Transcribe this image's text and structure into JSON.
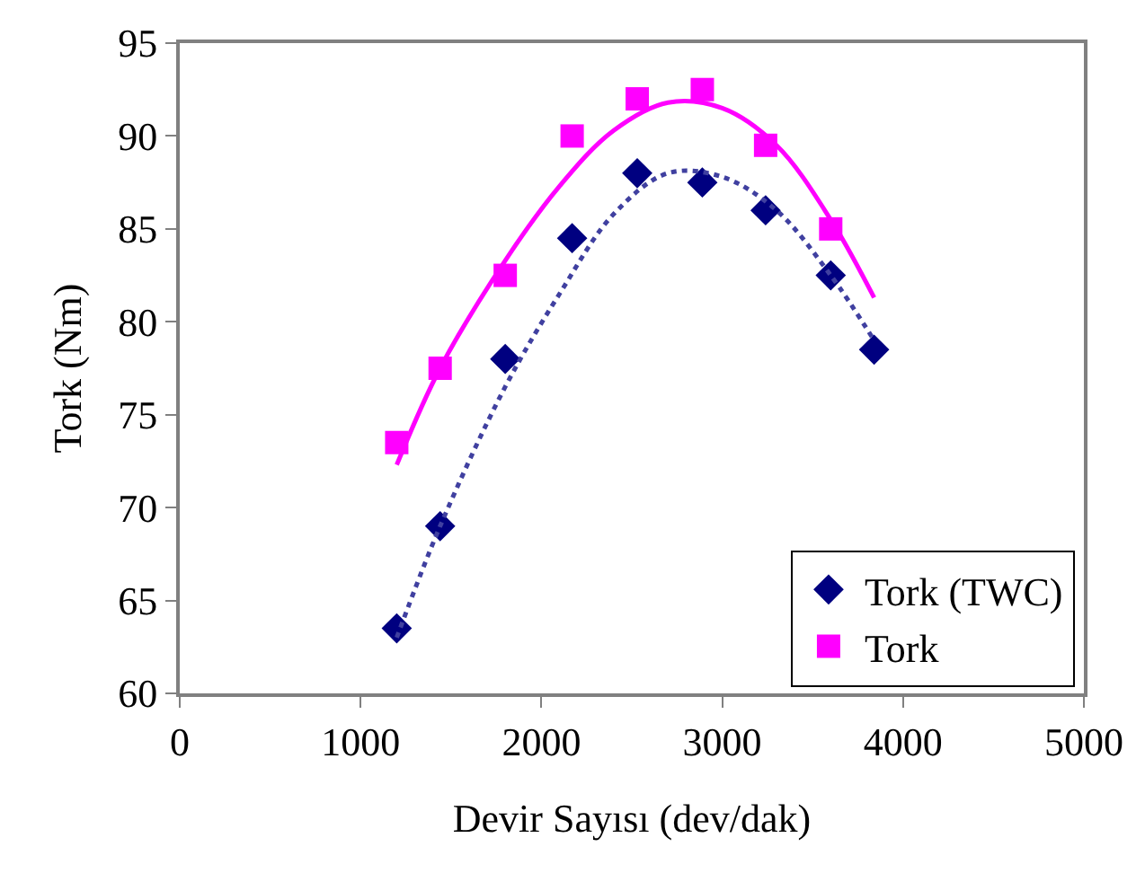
{
  "chart_data": {
    "type": "scatter",
    "xlabel": "Devir Sayısı (dev/dak)",
    "ylabel": "Tork (Nm)",
    "xlim": [
      0,
      5000
    ],
    "xticks": [
      0,
      1000,
      2000,
      3000,
      4000,
      5000
    ],
    "ylim": [
      60,
      95
    ],
    "yticks": [
      60,
      65,
      70,
      75,
      80,
      85,
      90,
      95
    ],
    "grid": false,
    "legend": "bottom right",
    "series": [
      {
        "name": "Tork (TWC)",
        "color": "#000080",
        "marker": "diamond",
        "x": [
          1200,
          1440,
          1800,
          2170,
          2530,
          2890,
          3240,
          3600,
          3840
        ],
        "values": [
          63.5,
          69,
          78,
          84.5,
          88,
          87.5,
          86,
          82.5,
          78.5
        ]
      },
      {
        "name": "Tork",
        "color": "#ff00ff",
        "marker": "square",
        "x": [
          1200,
          1440,
          1800,
          2170,
          2530,
          2890,
          3240,
          3600
        ],
        "values": [
          73.5,
          77.5,
          82.5,
          90,
          92,
          92.5,
          89.5,
          85
        ]
      },
      {
        "type": "line",
        "color": "#4040a0",
        "line_style": "dotted",
        "marker": "none",
        "x": [
          1200,
          1440,
          1800,
          2100,
          2400,
          2700,
          3000,
          3300,
          3600,
          3840
        ],
        "values": [
          63,
          69,
          76.5,
          81.5,
          85.8,
          88,
          87.8,
          86,
          82.5,
          79
        ]
      },
      {
        "type": "line",
        "color": "#ff00ff",
        "line_style": "solid",
        "marker": "none",
        "x": [
          1200,
          1440,
          1800,
          2100,
          2400,
          2700,
          3000,
          3300,
          3600,
          3840
        ],
        "values": [
          72.3,
          77.5,
          83.3,
          87.3,
          90.3,
          91.8,
          91.5,
          89.5,
          85.5,
          81.3
        ]
      }
    ]
  }
}
